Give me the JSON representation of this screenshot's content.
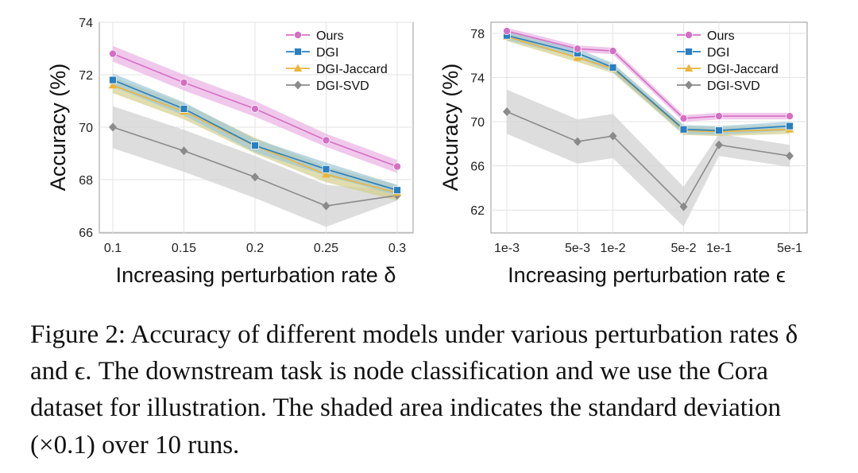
{
  "colors": {
    "ours": "#d46fc4",
    "dgi": "#2a7fc0",
    "dgi_jaccard": "#e9b53b",
    "dgi_svd": "#8a8a8a",
    "band_ours": "#eab1e2",
    "band_dgi": "#9fc7d6",
    "band_jaccard": "#d3cf8c",
    "band_svd": "#d2d2d2"
  },
  "chart_data": [
    {
      "type": "line",
      "ylabel": "Accuracy (%)",
      "xlabel": "Increasing perturbation rate δ",
      "x": [
        0.1,
        0.15,
        0.2,
        0.25,
        0.3
      ],
      "xtick_labels": [
        "0.1",
        "0.15",
        "0.2",
        "0.25",
        "0.3"
      ],
      "xlim": [
        0.1,
        0.3
      ],
      "ylim": [
        66,
        74
      ],
      "yticks": [
        66,
        68,
        70,
        72,
        74
      ],
      "grid": true,
      "legend_position": "top-right",
      "series": [
        {
          "name": "Ours",
          "values": [
            72.8,
            71.7,
            70.7,
            69.5,
            68.5
          ],
          "band": [
            0.3,
            0.3,
            0.3,
            0.25,
            0.25
          ]
        },
        {
          "name": "DGI",
          "values": [
            71.8,
            70.7,
            69.3,
            68.4,
            67.6
          ],
          "band": [
            0.25,
            0.25,
            0.25,
            0.25,
            0.2
          ]
        },
        {
          "name": "DGI-Jaccard",
          "values": [
            71.6,
            70.6,
            69.3,
            68.2,
            67.5
          ],
          "band": [
            0.3,
            0.3,
            0.3,
            0.3,
            0.3
          ]
        },
        {
          "name": "DGI-SVD",
          "values": [
            70.0,
            69.1,
            68.1,
            67.0,
            67.4
          ],
          "band": [
            0.8,
            0.8,
            0.8,
            0.8,
            0.2
          ]
        }
      ]
    },
    {
      "type": "line",
      "ylabel": "Accuracy (%)",
      "xlabel": "Increasing perturbation rate ϵ",
      "x": [
        0,
        2,
        3,
        5,
        6,
        8
      ],
      "xtick_labels": [
        "1e-3",
        "5e-3",
        "1e-2",
        "5e-2",
        "1e-1",
        "5e-1"
      ],
      "xlim": [
        0,
        8
      ],
      "ylim": [
        60,
        79
      ],
      "yticks": [
        62,
        66,
        70,
        74,
        78
      ],
      "grid": true,
      "legend_position": "top-right",
      "series": [
        {
          "name": "Ours",
          "values": [
            78.2,
            76.6,
            76.4,
            70.3,
            70.5,
            70.5
          ],
          "band": [
            0.3,
            0.3,
            0.3,
            0.3,
            0.3,
            0.3
          ]
        },
        {
          "name": "DGI",
          "values": [
            77.8,
            76.2,
            74.9,
            69.3,
            69.2,
            69.6
          ],
          "band": [
            0.4,
            0.4,
            0.4,
            0.4,
            0.4,
            0.4
          ]
        },
        {
          "name": "DGI-Jaccard",
          "values": [
            77.7,
            75.8,
            74.8,
            69.2,
            69.1,
            69.3
          ],
          "band": [
            0.4,
            0.4,
            0.4,
            0.4,
            0.4,
            0.4
          ]
        },
        {
          "name": "DGI-SVD",
          "values": [
            70.9,
            68.2,
            68.7,
            62.3,
            67.9,
            66.9
          ],
          "band": [
            2.0,
            2.0,
            2.0,
            1.8,
            1.0,
            1.0
          ]
        }
      ]
    }
  ],
  "caption": "Figure 2: Accuracy of different models under various perturbation rates δ and ϵ. The downstream task is node classification and we use the Cora dataset for illustration. The shaded area indicates the standard deviation (×0.1) over 10 runs."
}
